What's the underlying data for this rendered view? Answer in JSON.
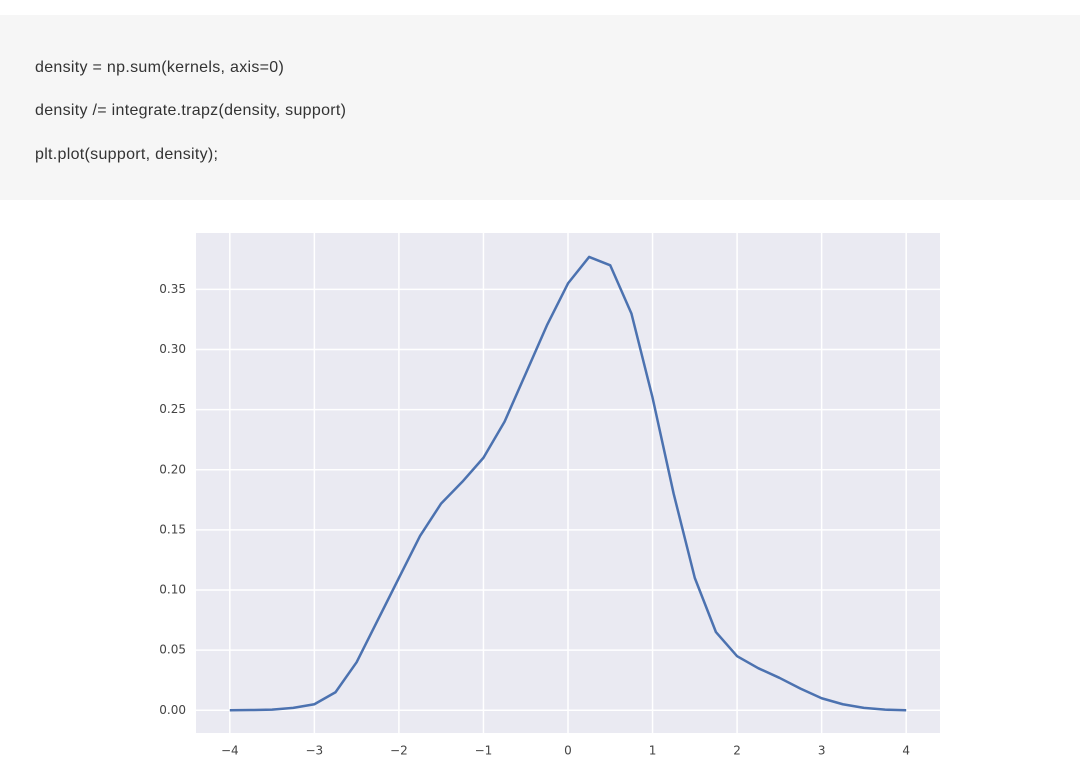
{
  "code": {
    "lines": [
      "density = np.sum(kernels, axis=0)",
      "density /= integrate.trapz(density, support)",
      "plt.plot(support, density);"
    ]
  },
  "chart_data": {
    "type": "line",
    "x": [
      -4,
      -3.75,
      -3.5,
      -3.25,
      -3,
      -2.75,
      -2.5,
      -2.25,
      -2,
      -1.75,
      -1.5,
      -1.25,
      -1,
      -0.75,
      -0.5,
      -0.25,
      0,
      0.25,
      0.5,
      0.75,
      1,
      1.25,
      1.5,
      1.75,
      2,
      2.25,
      2.5,
      2.75,
      3,
      3.25,
      3.5,
      3.75,
      4
    ],
    "series": [
      {
        "color": "#4c72b0",
        "values": [
          0,
          0.0002,
          0.0005,
          0.002,
          0.005,
          0.015,
          0.04,
          0.075,
          0.11,
          0.145,
          0.172,
          0.19,
          0.21,
          0.24,
          0.28,
          0.32,
          0.355,
          0.377,
          0.37,
          0.33,
          0.26,
          0.18,
          0.11,
          0.065,
          0.045,
          0.035,
          0.027,
          0.018,
          0.01,
          0.005,
          0.002,
          0.0005,
          0
        ]
      }
    ],
    "xlim": [
      -4.4,
      4.4
    ],
    "ylim": [
      -0.0189,
      0.3969
    ],
    "xticks": [
      {
        "value": -4,
        "label": "−4"
      },
      {
        "value": -3,
        "label": "−3"
      },
      {
        "value": -2,
        "label": "−2"
      },
      {
        "value": -1,
        "label": "−1"
      },
      0,
      1,
      2,
      3,
      4
    ],
    "yticks": [
      {
        "value": 0,
        "label": "0.00"
      },
      0.05,
      {
        "value": 0.1,
        "label": "0.10"
      },
      0.15,
      {
        "value": 0.2,
        "label": "0.20"
      },
      0.25,
      {
        "value": 0.3,
        "label": "0.30"
      },
      0.35
    ],
    "grid": true
  }
}
